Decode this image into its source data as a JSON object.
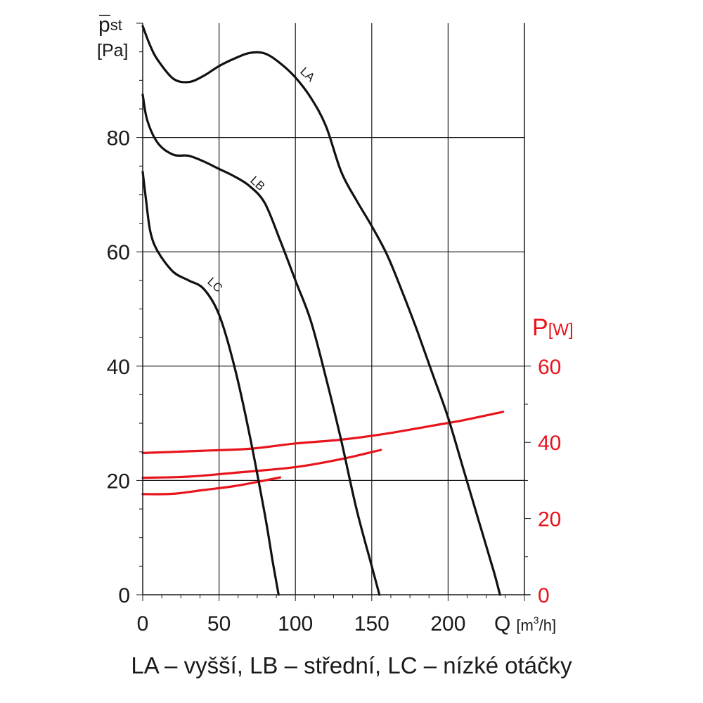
{
  "chart_data": {
    "type": "line",
    "y_left": {
      "title_main": "p",
      "title_sub": "st",
      "unit": "[Pa]",
      "range": [
        0,
        100
      ],
      "ticks": [
        0,
        20,
        40,
        60,
        80
      ]
    },
    "y_right": {
      "title_main": "P",
      "title_unit": "[W]",
      "range": [
        0,
        150
      ],
      "ticks": [
        0,
        20,
        40,
        60
      ],
      "color": "#e8141c"
    },
    "x": {
      "title_main": "Q",
      "unit_pre": "[m",
      "unit_sup": "3",
      "unit_post": "/h]",
      "range": [
        0,
        250
      ],
      "ticks": [
        0,
        50,
        100,
        150,
        200
      ]
    },
    "grid": true,
    "pressure_series": [
      {
        "name": "LA",
        "color": "#111111",
        "points": [
          [
            0,
            99.5
          ],
          [
            5,
            96
          ],
          [
            10,
            93.5
          ],
          [
            20,
            90.3
          ],
          [
            30,
            89.7
          ],
          [
            40,
            90.8
          ],
          [
            50,
            92.5
          ],
          [
            60,
            93.8
          ],
          [
            70,
            94.8
          ],
          [
            80,
            94.7
          ],
          [
            90,
            93
          ],
          [
            100,
            90.5
          ],
          [
            110,
            87
          ],
          [
            120,
            82
          ],
          [
            130,
            74
          ],
          [
            140,
            69
          ],
          [
            150,
            64.5
          ],
          [
            160,
            59.5
          ],
          [
            170,
            53
          ],
          [
            180,
            46
          ],
          [
            190,
            38.5
          ],
          [
            200,
            31
          ],
          [
            210,
            22
          ],
          [
            220,
            13
          ],
          [
            230,
            4
          ],
          [
            234,
            0
          ]
        ]
      },
      {
        "name": "LB",
        "color": "#111111",
        "points": [
          [
            0,
            87.5
          ],
          [
            3,
            83
          ],
          [
            10,
            79
          ],
          [
            20,
            77
          ],
          [
            30,
            76.8
          ],
          [
            40,
            75.8
          ],
          [
            50,
            74.5
          ],
          [
            60,
            73.2
          ],
          [
            70,
            71.5
          ],
          [
            80,
            68.5
          ],
          [
            90,
            62
          ],
          [
            100,
            55
          ],
          [
            110,
            48
          ],
          [
            120,
            38
          ],
          [
            130,
            27
          ],
          [
            140,
            15
          ],
          [
            150,
            5
          ],
          [
            155,
            0
          ]
        ]
      },
      {
        "name": "LC",
        "color": "#111111",
        "points": [
          [
            0,
            74
          ],
          [
            2,
            69.5
          ],
          [
            5,
            63.5
          ],
          [
            10,
            60
          ],
          [
            20,
            56.5
          ],
          [
            30,
            55
          ],
          [
            40,
            53.5
          ],
          [
            50,
            49
          ],
          [
            60,
            40
          ],
          [
            70,
            28
          ],
          [
            80,
            14
          ],
          [
            85,
            6
          ],
          [
            89,
            0
          ]
        ]
      }
    ],
    "power_series": [
      {
        "name": "LA",
        "color": "#e8141c",
        "points": [
          [
            0,
            37.2
          ],
          [
            20,
            37.5
          ],
          [
            40,
            37.8
          ],
          [
            70,
            38.3
          ],
          [
            100,
            39.7
          ],
          [
            130,
            40.7
          ],
          [
            160,
            42.3
          ],
          [
            190,
            44.4
          ],
          [
            210,
            45.8
          ],
          [
            236,
            48
          ]
        ]
      },
      {
        "name": "LB",
        "color": "#e8141c",
        "points": [
          [
            0,
            30.7
          ],
          [
            30,
            31
          ],
          [
            60,
            32
          ],
          [
            100,
            33.5
          ],
          [
            130,
            35.6
          ],
          [
            156,
            38
          ]
        ]
      },
      {
        "name": "LC",
        "color": "#e8141c",
        "points": [
          [
            0,
            26.4
          ],
          [
            20,
            26.5
          ],
          [
            40,
            27.5
          ],
          [
            60,
            28.5
          ],
          [
            80,
            30
          ],
          [
            90,
            30.8
          ]
        ]
      }
    ]
  },
  "caption": "LA – vyšší, LB – střední, LC – nízké otáčky"
}
